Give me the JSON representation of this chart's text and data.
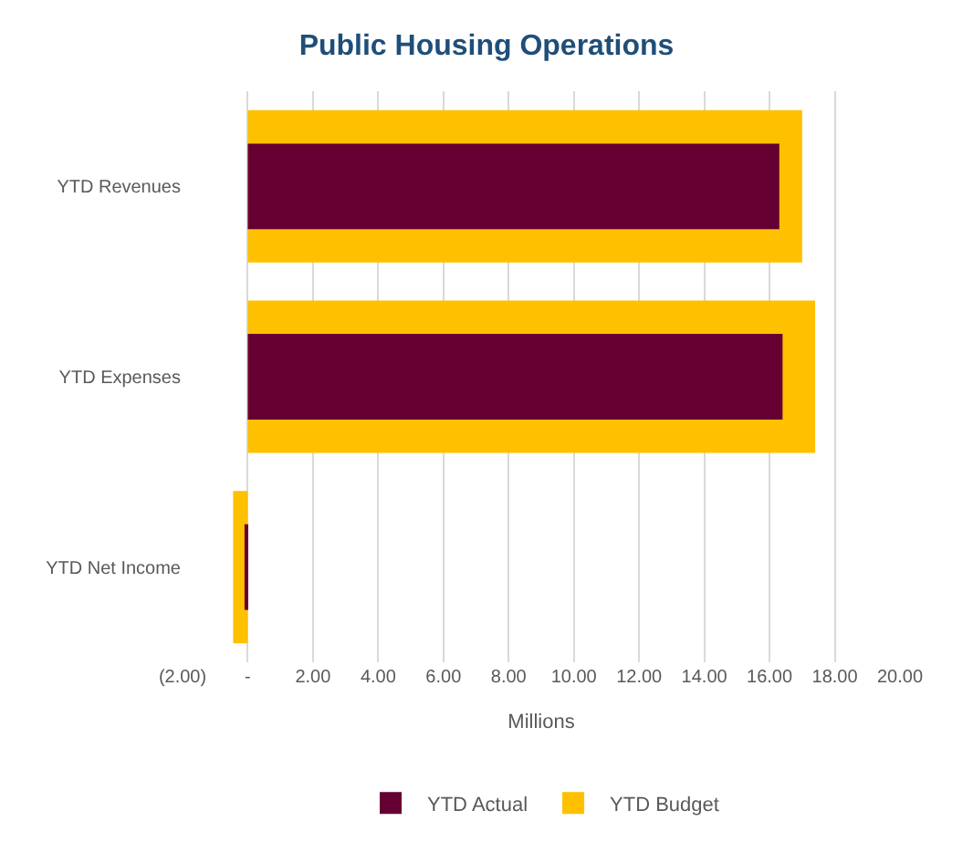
{
  "chart_data": {
    "type": "bar",
    "orientation": "horizontal",
    "title": "Public Housing Operations",
    "xlabel": "Millions",
    "categories": [
      "YTD Revenues",
      "YTD Expenses",
      "YTD Net Income"
    ],
    "series": [
      {
        "name": "YTD Actual",
        "color": "#660033",
        "values": [
          16.3,
          16.4,
          -0.1
        ]
      },
      {
        "name": "YTD Budget",
        "color": "#ffc000",
        "values": [
          17.0,
          17.4,
          -0.45
        ]
      }
    ],
    "xlim": [
      -2,
      20
    ],
    "xticks": [
      {
        "value": -2,
        "label": "(2.00)"
      },
      {
        "value": 0,
        "label": "-"
      },
      {
        "value": 2,
        "label": "2.00"
      },
      {
        "value": 4,
        "label": "4.00"
      },
      {
        "value": 6,
        "label": "6.00"
      },
      {
        "value": 8,
        "label": "8.00"
      },
      {
        "value": 10,
        "label": "10.00"
      },
      {
        "value": 12,
        "label": "12.00"
      },
      {
        "value": 14,
        "label": "14.00"
      },
      {
        "value": 16,
        "label": "16.00"
      },
      {
        "value": 18,
        "label": "18.00"
      },
      {
        "value": 20,
        "label": "20.00"
      }
    ],
    "grid": "x",
    "legend": "bottom"
  }
}
